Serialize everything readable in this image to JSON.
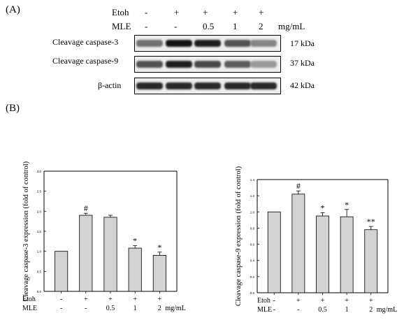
{
  "panel_a": {
    "label": "(A)",
    "rows": [
      {
        "name": "Etoh",
        "values": [
          "-",
          "+",
          "+",
          "+",
          "+"
        ],
        "unit": ""
      },
      {
        "name": "MLE",
        "values": [
          "-",
          "-",
          "0.5",
          "1",
          "2"
        ],
        "unit": "mg/mL"
      }
    ],
    "blots": [
      {
        "label": "Cleavage caspase-3",
        "kda": "17 kDa",
        "intensity": [
          0.55,
          1.0,
          0.95,
          0.7,
          0.45
        ]
      },
      {
        "label": "Cleavage caspase-9",
        "kda": "37 kDa",
        "intensity": [
          0.7,
          0.95,
          0.75,
          0.65,
          0.35
        ]
      },
      {
        "label": "β-actin",
        "kda": "42 kDa",
        "intensity": [
          0.9,
          0.9,
          0.9,
          0.9,
          0.9
        ]
      }
    ]
  },
  "panel_b": {
    "label": "(B)"
  },
  "chart_data": [
    {
      "type": "bar",
      "ylabel": "Cleavage caspase-3 expression  (fold of control)",
      "ylim": [
        0,
        3.0
      ],
      "yticks": [
        0.0,
        0.5,
        1.0,
        1.5,
        2.0,
        2.5,
        3.0
      ],
      "ytick_labels": [
        "0.0",
        "0.5",
        "1.0",
        "1.5",
        "2.0",
        "2.5",
        "3.0"
      ],
      "values": [
        1.0,
        1.9,
        1.85,
        1.08,
        0.9
      ],
      "errors": [
        0.0,
        0.05,
        0.05,
        0.06,
        0.08
      ],
      "annotations": [
        "",
        "#",
        "",
        "*",
        "*"
      ],
      "row_labels": [
        {
          "name": "Etoh",
          "values": [
            "-",
            "+",
            "+",
            "+",
            "+"
          ],
          "unit": ""
        },
        {
          "name": "MLE",
          "values": [
            "-",
            "-",
            "0.5",
            "1",
            "2"
          ],
          "unit": "mg/mL"
        }
      ],
      "grid": false
    },
    {
      "type": "bar",
      "ylabel": "Cleavage caspase-9 expression  (fold of control)",
      "ylim": [
        0,
        1.4
      ],
      "yticks": [
        0.0,
        0.2,
        0.4,
        0.6,
        0.8,
        1.0,
        1.2,
        1.4
      ],
      "ytick_labels": [
        "0.0",
        "0.2",
        "0.4",
        "0.6",
        "0.8",
        "1.0",
        "1.2",
        "1.4"
      ],
      "values": [
        1.0,
        1.22,
        0.95,
        0.94,
        0.78
      ],
      "errors": [
        0.0,
        0.04,
        0.04,
        0.09,
        0.04
      ],
      "annotations": [
        "",
        "#",
        "*",
        "*",
        "**"
      ],
      "row_labels": [
        {
          "name": "Etoh",
          "values": [
            "-",
            "+",
            "+",
            "+",
            "+"
          ],
          "unit": ""
        },
        {
          "name": "MLE",
          "values": [
            "-",
            "-",
            "0.5",
            "1",
            "2"
          ],
          "unit": "mg/mL"
        }
      ],
      "grid": false
    }
  ]
}
